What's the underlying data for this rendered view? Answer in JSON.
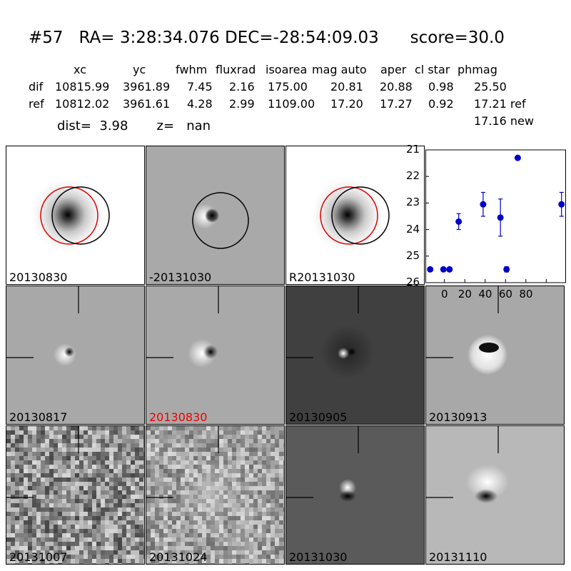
{
  "title": "#57   RA= 3:28:34.076 DEC=-28:54:09.03      score=30.0",
  "table": {
    "headers": [
      "xc",
      "yc",
      "fwhm",
      "fluxrad",
      "isoarea",
      "mag auto",
      "aper",
      "cl star",
      "phmag"
    ],
    "rows": [
      {
        "label": "dif",
        "values": [
          "10815.99",
          "3961.89",
          "7.45",
          "2.16",
          "175.00",
          "20.81",
          "20.88",
          "0.98",
          "25.50"
        ]
      },
      {
        "label": "ref",
        "values": [
          "10812.02",
          "3961.61",
          "4.28",
          "2.99",
          "1109.00",
          "17.20",
          "17.27",
          "0.92",
          "17.21 ref"
        ]
      }
    ],
    "extra": "17.16 new"
  },
  "dist_line": "dist=  3.98       z=   nan",
  "top_panels": [
    {
      "label": "20130830",
      "bg": "#ffffff"
    },
    {
      "label": "-20131030",
      "bg": "#a9a9a9"
    },
    {
      "label": "R20131030",
      "bg": "#ffffff"
    }
  ],
  "grid_panels": [
    {
      "label": "20130817",
      "bg": "#a8a8a8",
      "style": "dipole-small",
      "highlight": false
    },
    {
      "label": "20130830",
      "bg": "#a9a9a9",
      "style": "dipole",
      "highlight": true
    },
    {
      "label": "20130905",
      "bg": "#404040",
      "style": "dark-dipole",
      "highlight": false
    },
    {
      "label": "20130913",
      "bg": "#a8a8a8",
      "style": "ring",
      "highlight": false
    },
    {
      "label": "20131007",
      "bg": "#9a9a9a",
      "style": "noise",
      "highlight": false
    },
    {
      "label": "20131024",
      "bg": "#a0a0a0",
      "style": "noise-light",
      "highlight": false
    },
    {
      "label": "20131030",
      "bg": "#5a5a5a",
      "style": "dipole-vert",
      "highlight": false
    },
    {
      "label": "20131110",
      "bg": "#b8b8b8",
      "style": "dipole-vert-light",
      "highlight": false
    }
  ],
  "colors": {
    "marker": "#0000cc",
    "highlight": "#e00000",
    "circle_red": "#e00000"
  },
  "chart_data": {
    "type": "scatter",
    "x": [
      -14,
      -1,
      5,
      14,
      38,
      55,
      61,
      72,
      115
    ],
    "y": [
      25.5,
      25.5,
      25.5,
      23.7,
      23.05,
      23.55,
      25.5,
      21.3,
      23.05
    ],
    "yerr": [
      0.05,
      0.05,
      0.05,
      0.3,
      0.45,
      0.7,
      0.1,
      0.0,
      0.45
    ],
    "xlim": [
      -18,
      118
    ],
    "ylim": [
      26,
      21
    ],
    "xticks": [
      0,
      20,
      40,
      60,
      80,
      100
    ],
    "yticks": [
      21,
      22,
      23,
      24,
      25,
      26
    ],
    "y_inverted": true
  }
}
